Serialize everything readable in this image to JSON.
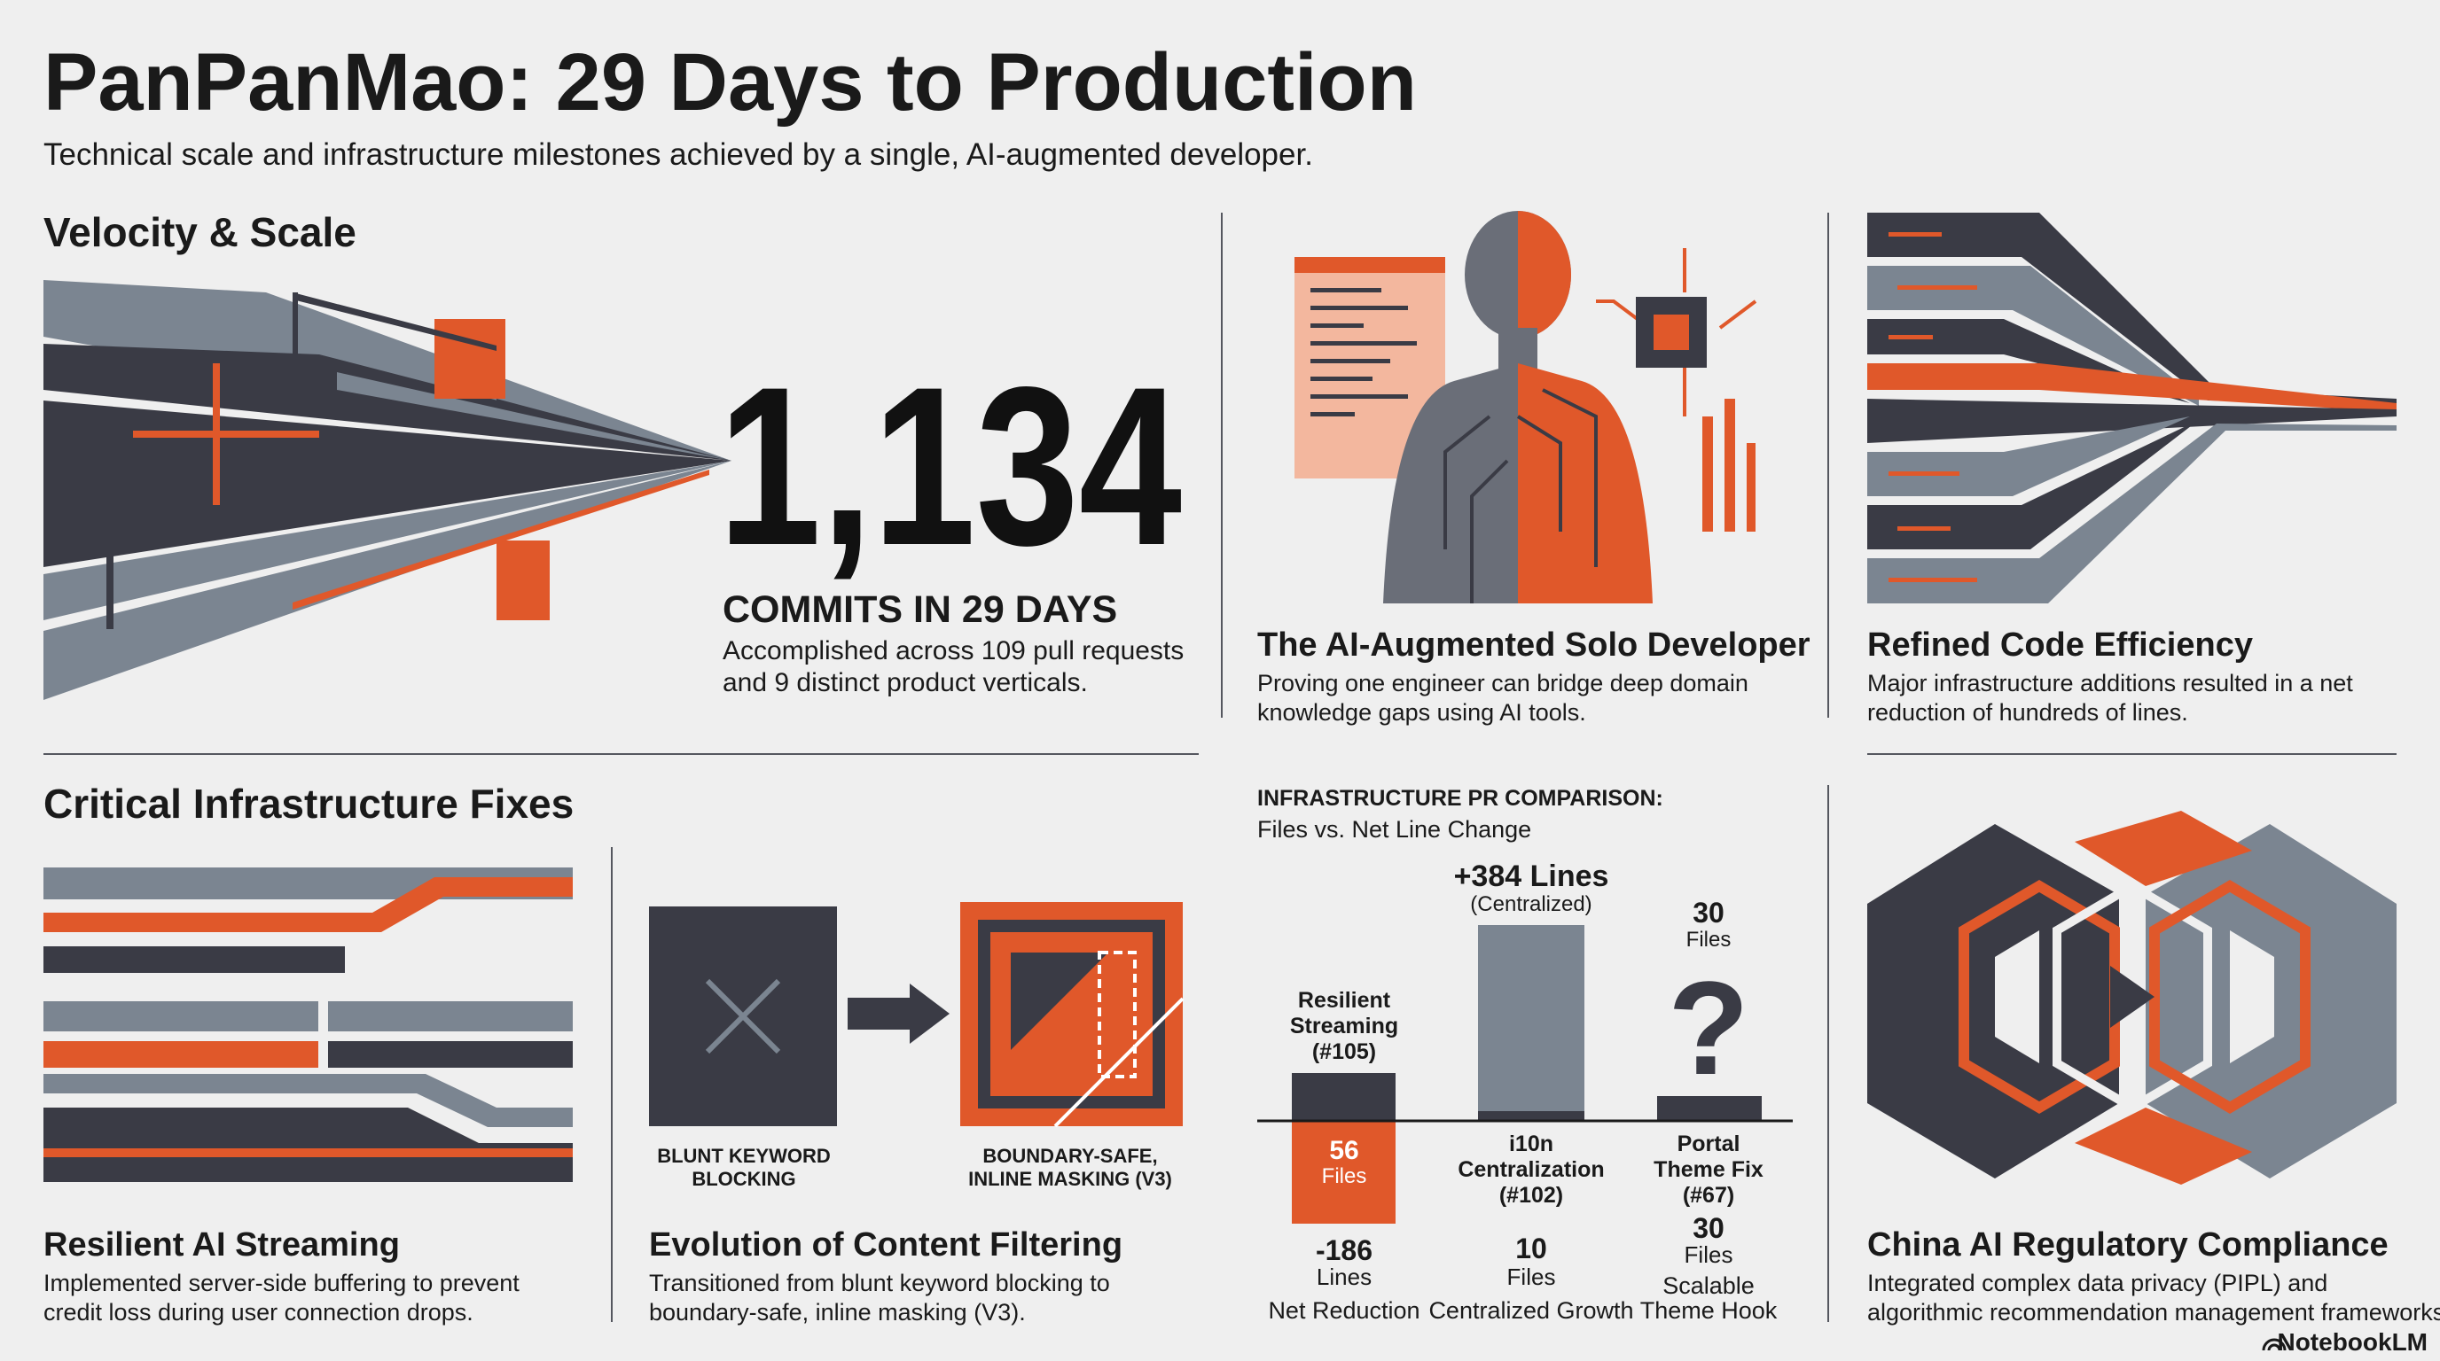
{
  "header": {
    "title": "PanPanMao: 29 Days to Production",
    "subtitle": "Technical scale and infrastructure milestones achieved by a single, AI-augmented developer."
  },
  "velocity": {
    "heading": "Velocity & Scale",
    "big_number": "1,134",
    "caption": "COMMITS IN 29 DAYS",
    "description": [
      "Accomplished across 109 pull requests",
      "and 9 distinct product verticals."
    ]
  },
  "solo_developer": {
    "title": "The AI-Augmented Solo Developer",
    "description": [
      "Proving one engineer can bridge deep domain",
      "knowledge gaps using AI tools."
    ]
  },
  "code_efficiency": {
    "title": "Refined Code Efficiency",
    "description": [
      "Major infrastructure additions resulted in a net",
      "reduction of hundreds of lines."
    ]
  },
  "fixes": {
    "heading": "Critical Infrastructure Fixes"
  },
  "streaming": {
    "title": "Resilient AI Streaming",
    "description": [
      "Implemented server-side buffering to prevent",
      "credit loss during user connection drops."
    ]
  },
  "filtering": {
    "before_label": [
      "BLUNT KEYWORD",
      "BLOCKING"
    ],
    "after_label": [
      "BOUNDARY-SAFE,",
      "INLINE MASKING (V3)"
    ],
    "title": "Evolution of Content Filtering",
    "description": [
      "Transitioned from blunt keyword blocking to",
      "boundary-safe, inline masking (V3)."
    ]
  },
  "pr_comparison": {
    "title": "INFRASTRUCTURE PR COMPARISON:",
    "subtitle": "Files vs. Net Line Change",
    "items": [
      {
        "name": [
          "Resilient",
          "Streaming",
          "(#105)"
        ],
        "bar_label": [
          "56",
          "Files"
        ],
        "below": [
          "-186",
          "Lines",
          "Net Reduction"
        ]
      },
      {
        "above": [
          "+384 Lines",
          "(Centralized)"
        ],
        "name": [
          "i10n",
          "Centralization",
          "(#102)"
        ],
        "below": [
          "10",
          "Files",
          "Centralized Growth"
        ]
      },
      {
        "above": [
          "30",
          "Files"
        ],
        "symbol": "?",
        "name": [
          "Portal",
          "Theme Fix",
          "(#67)"
        ],
        "below": [
          "30",
          "Files",
          "Scalable",
          "Theme Hook"
        ]
      }
    ]
  },
  "compliance": {
    "title": "China AI Regulatory Compliance",
    "description": [
      "Integrated complex data privacy (PIPL) and",
      "algorithmic recommendation management frameworks."
    ]
  },
  "brand": "NotebookLM"
}
